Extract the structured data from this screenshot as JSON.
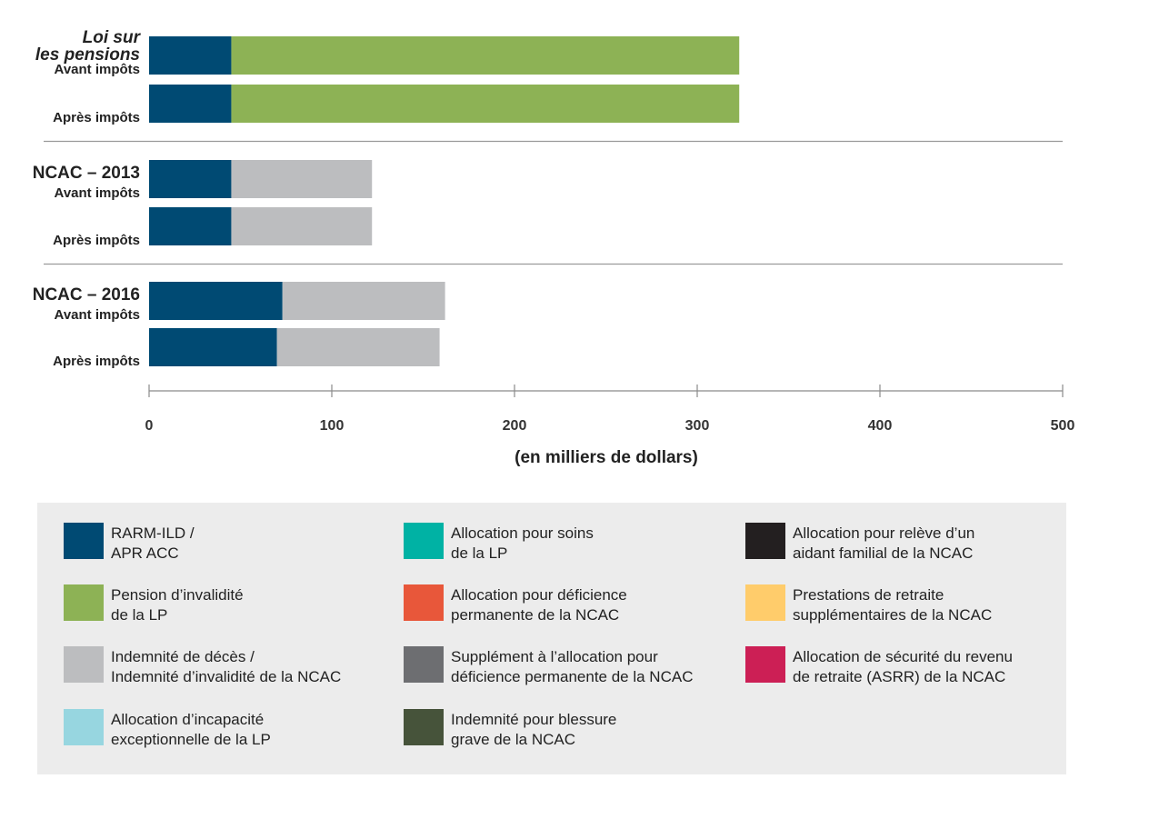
{
  "chart_data": {
    "type": "bar",
    "orientation": "horizontal",
    "stacked": true,
    "xlabel": "(en milliers de dollars)",
    "xlim": [
      0,
      500
    ],
    "x_ticks": [
      "0",
      "100",
      "200",
      "300",
      "400",
      "500"
    ],
    "groups": [
      {
        "title_lines": [
          "Loi sur",
          "les pensions"
        ],
        "italic": true,
        "rows": [
          {
            "label": "Avant impôts",
            "values": [
              {
                "series": 0,
                "value": 45
              },
              {
                "series": 1,
                "value": 278
              }
            ]
          },
          {
            "label": "Après impôts",
            "values": [
              {
                "series": 0,
                "value": 45
              },
              {
                "series": 1,
                "value": 278
              }
            ]
          }
        ]
      },
      {
        "title_lines": [
          "NCAC – 2013"
        ],
        "italic": false,
        "rows": [
          {
            "label": "Avant impôts",
            "values": [
              {
                "series": 0,
                "value": 45
              },
              {
                "series": 2,
                "value": 77
              }
            ]
          },
          {
            "label": "Après impôts",
            "values": [
              {
                "series": 0,
                "value": 45
              },
              {
                "series": 2,
                "value": 77
              }
            ]
          }
        ]
      },
      {
        "title_lines": [
          "NCAC – 2016"
        ],
        "italic": false,
        "rows": [
          {
            "label": "Avant impôts",
            "values": [
              {
                "series": 0,
                "value": 73
              },
              {
                "series": 2,
                "value": 89
              }
            ]
          },
          {
            "label": "Après impôts",
            "values": [
              {
                "series": 0,
                "value": 70
              },
              {
                "series": 2,
                "value": 89
              }
            ]
          }
        ]
      }
    ],
    "legend": [
      {
        "lines": [
          "RARM-ILD /",
          "APR ACC"
        ],
        "color": "#004a73"
      },
      {
        "lines": [
          "Pension d’invalidité",
          "de la LP"
        ],
        "color": "#8db255"
      },
      {
        "lines": [
          "Indemnité de décès /",
          "Indemnité d’invalidité de la NCAC"
        ],
        "color": "#bcbdbf"
      },
      {
        "lines": [
          "Allocation d’incapacité",
          "exceptionnelle de la LP"
        ],
        "color": "#97d6e0"
      },
      {
        "lines": [
          "Allocation pour soins",
          "de la LP"
        ],
        "color": "#00b2a4"
      },
      {
        "lines": [
          "Allocation pour déficience",
          "permanente de la NCAC"
        ],
        "color": "#e8573a"
      },
      {
        "lines": [
          "Supplément à l’allocation pour",
          "déficience permanente de la NCAC"
        ],
        "color": "#6d6e71"
      },
      {
        "lines": [
          "Indemnité pour blessure",
          "grave de la NCAC"
        ],
        "color": "#46533a"
      },
      {
        "lines": [
          "Allocation pour relève d’un",
          "aidant familial de la NCAC"
        ],
        "color": "#231f20"
      },
      {
        "lines": [
          "Prestations de retraite",
          "supplémentaires de la NCAC"
        ],
        "color": "#ffcc6b"
      },
      {
        "lines": [
          "Allocation de sécurité du revenu",
          "de retraite (ASRR) de la NCAC"
        ],
        "color": "#cc1f55"
      }
    ]
  }
}
